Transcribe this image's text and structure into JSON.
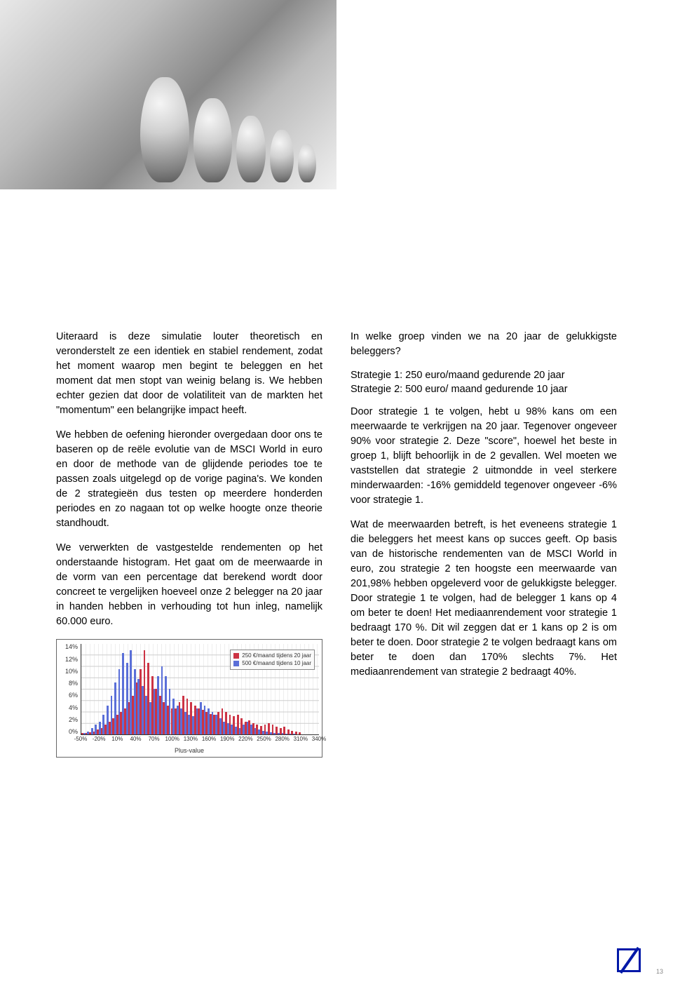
{
  "left_column": {
    "p1": "Uiteraard is deze simulatie louter theoretisch en veronderstelt ze een identiek en stabiel rendement, zodat het moment waarop men begint te beleggen en het moment dat men stopt van weinig belang is. We hebben echter gezien dat door de volatiliteit van de markten het \"momentum\" een belangrijke impact heeft.",
    "p2": "We hebben de oefening hieronder overgedaan door ons te baseren op de reële evolutie van de MSCI World in euro en door de methode van de glijdende periodes toe te passen zoals uitgelegd op de vorige pagina's. We konden de 2 strategieën dus testen op meerdere honderden periodes en zo nagaan tot op welke hoogte onze theorie standhoudt.",
    "p3": "We verwerkten de vastgestelde rendementen op het onderstaande histogram. Het gaat om de meerwaarde in de vorm van een percentage dat berekend wordt door concreet te vergelijken hoeveel onze 2 belegger na 20 jaar in handen hebben in verhouding tot hun inleg, namelijk 60.000 euro."
  },
  "right_column": {
    "p1": "In welke groep vinden we na 20 jaar de gelukkigste beleggers?",
    "p2a": "Strategie 1: 250 euro/maand gedurende 20 jaar",
    "p2b": "Strategie 2: 500 euro/ maand gedurende 10 jaar",
    "p3": "Door strategie 1 te volgen, hebt u 98% kans om een meerwaarde te verkrijgen na 20 jaar. Tegenover ongeveer 90% voor strategie 2. Deze \"score\", hoewel het beste in groep 1, blijft behoorlijk in de 2 gevallen. Wel moeten we vaststellen dat strategie 2 uitmondde in veel sterkere minderwaarden: -16% gemiddeld tegenover ongeveer -6% voor strategie 1.",
    "p4": "Wat de meerwaarden betreft, is het eveneens strategie 1 die beleggers het meest kans op succes geeft. Op basis van de historische rendementen van de MSCI World in euro, zou strategie 2 ten hoogste een meerwaarde van 201,98% hebben opgeleverd voor de gelukkigste belegger. Door strategie 1 te volgen, had de belegger 1 kans op 4 om beter te doen! Het mediaanrendement voor strategie 1 bedraagt 170 %. Dit wil zeggen dat er 1 kans op 2 is om beter te doen. Door strategie 2 te volgen bedraagt kans om beter te doen dan 170% slechts 7%. Het mediaanrendement van strategie 2 bedraagt 40%."
  },
  "chart": {
    "type": "histogram",
    "ylim": [
      0,
      14
    ],
    "ytick_step": 2,
    "yticks": [
      "0%",
      "2%",
      "4%",
      "6%",
      "8%",
      "10%",
      "12%",
      "14%"
    ],
    "xlabel": "Plus-value",
    "xticks": [
      "-50%",
      "-20%",
      "10%",
      "40%",
      "70%",
      "100%",
      "130%",
      "160%",
      "190%",
      "220%",
      "250%",
      "280%",
      "310%",
      "340%"
    ],
    "legend": {
      "s1": "250 €/maand tijdens 20 jaar",
      "s2": "500 €/maand tijdens 10 jaar"
    },
    "series1_color": "#cc3344",
    "series2_color": "#5a6fd8",
    "background_color": "#ffffff",
    "grid_color": "#cccccc",
    "bins": [
      {
        "x": -50,
        "s1": 0.2,
        "s2": 0.3
      },
      {
        "x": -45,
        "s1": 0.3,
        "s2": 0.5
      },
      {
        "x": -40,
        "s1": 0.4,
        "s2": 1.0
      },
      {
        "x": -35,
        "s1": 0.5,
        "s2": 1.5
      },
      {
        "x": -30,
        "s1": 0.8,
        "s2": 2.0
      },
      {
        "x": -25,
        "s1": 1.0,
        "s2": 3.0
      },
      {
        "x": -20,
        "s1": 1.5,
        "s2": 4.5
      },
      {
        "x": -15,
        "s1": 2.0,
        "s2": 6.0
      },
      {
        "x": -10,
        "s1": 2.5,
        "s2": 8.0
      },
      {
        "x": -5,
        "s1": 3.0,
        "s2": 10.0
      },
      {
        "x": 0,
        "s1": 3.5,
        "s2": 12.5
      },
      {
        "x": 5,
        "s1": 4.0,
        "s2": 11.0
      },
      {
        "x": 10,
        "s1": 5.0,
        "s2": 13.0
      },
      {
        "x": 15,
        "s1": 6.0,
        "s2": 10.0
      },
      {
        "x": 20,
        "s1": 8.0,
        "s2": 8.5
      },
      {
        "x": 25,
        "s1": 10.0,
        "s2": 7.5
      },
      {
        "x": 30,
        "s1": 13.0,
        "s2": 6.0
      },
      {
        "x": 35,
        "s1": 11.0,
        "s2": 5.0
      },
      {
        "x": 40,
        "s1": 9.0,
        "s2": 7.0
      },
      {
        "x": 45,
        "s1": 7.0,
        "s2": 9.0
      },
      {
        "x": 50,
        "s1": 6.0,
        "s2": 10.5
      },
      {
        "x": 55,
        "s1": 5.0,
        "s2": 9.0
      },
      {
        "x": 60,
        "s1": 4.5,
        "s2": 7.0
      },
      {
        "x": 65,
        "s1": 4.0,
        "s2": 5.5
      },
      {
        "x": 70,
        "s1": 4.0,
        "s2": 4.5
      },
      {
        "x": 75,
        "s1": 5.0,
        "s2": 4.0
      },
      {
        "x": 80,
        "s1": 6.0,
        "s2": 3.5
      },
      {
        "x": 85,
        "s1": 5.5,
        "s2": 3.0
      },
      {
        "x": 90,
        "s1": 5.0,
        "s2": 2.8
      },
      {
        "x": 95,
        "s1": 4.5,
        "s2": 4.0
      },
      {
        "x": 100,
        "s1": 4.0,
        "s2": 5.0
      },
      {
        "x": 105,
        "s1": 3.8,
        "s2": 4.5
      },
      {
        "x": 110,
        "s1": 3.5,
        "s2": 4.0
      },
      {
        "x": 115,
        "s1": 3.2,
        "s2": 3.5
      },
      {
        "x": 120,
        "s1": 3.0,
        "s2": 3.0
      },
      {
        "x": 130,
        "s1": 3.5,
        "s2": 2.5
      },
      {
        "x": 140,
        "s1": 4.0,
        "s2": 2.0
      },
      {
        "x": 150,
        "s1": 3.5,
        "s2": 1.8
      },
      {
        "x": 160,
        "s1": 3.0,
        "s2": 1.5
      },
      {
        "x": 170,
        "s1": 2.8,
        "s2": 1.2
      },
      {
        "x": 180,
        "s1": 3.0,
        "s2": 1.0
      },
      {
        "x": 190,
        "s1": 2.5,
        "s2": 1.5
      },
      {
        "x": 200,
        "s1": 2.0,
        "s2": 2.0
      },
      {
        "x": 210,
        "s1": 2.2,
        "s2": 1.5
      },
      {
        "x": 220,
        "s1": 1.8,
        "s2": 1.0
      },
      {
        "x": 230,
        "s1": 1.5,
        "s2": 0.8
      },
      {
        "x": 240,
        "s1": 1.3,
        "s2": 0.6
      },
      {
        "x": 250,
        "s1": 1.5,
        "s2": 0.5
      },
      {
        "x": 260,
        "s1": 1.8,
        "s2": 0.4
      },
      {
        "x": 270,
        "s1": 1.5,
        "s2": 0.3
      },
      {
        "x": 280,
        "s1": 1.2,
        "s2": 0.2
      },
      {
        "x": 290,
        "s1": 1.0,
        "s2": 0.2
      },
      {
        "x": 300,
        "s1": 1.2,
        "s2": 0.1
      },
      {
        "x": 310,
        "s1": 0.8,
        "s2": 0.1
      },
      {
        "x": 320,
        "s1": 0.6,
        "s2": 0.1
      },
      {
        "x": 330,
        "s1": 0.5,
        "s2": 0.0
      },
      {
        "x": 340,
        "s1": 0.4,
        "s2": 0.0
      }
    ]
  },
  "page_number": "13",
  "logo_color": "#0018a8"
}
